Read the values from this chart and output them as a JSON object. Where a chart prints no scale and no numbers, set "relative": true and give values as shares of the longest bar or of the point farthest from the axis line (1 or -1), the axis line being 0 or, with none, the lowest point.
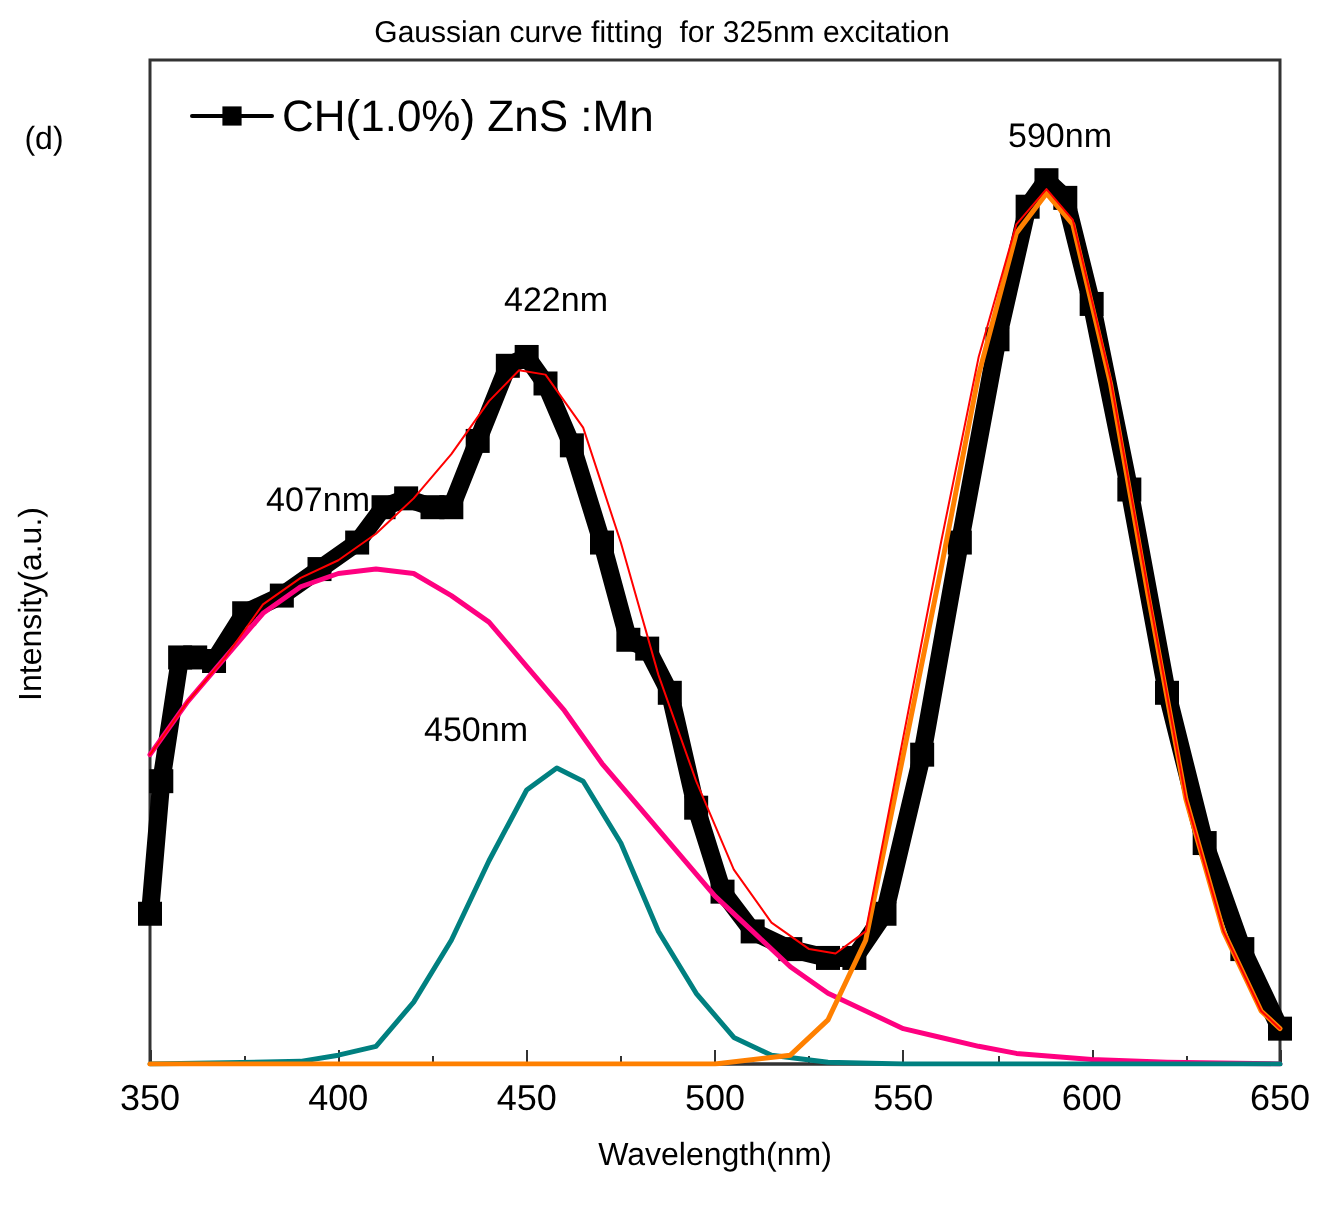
{
  "chart_data": {
    "type": "line",
    "title": "Gaussian curve fitting  for 325nm excitation",
    "xlabel": "Wavelength(nm)",
    "ylabel": "Intensity(a.u.)",
    "relative": true,
    "xlim": [
      350,
      650
    ],
    "xticks": [
      350,
      400,
      450,
      500,
      550,
      600,
      650
    ],
    "grid": false,
    "legend": "top left",
    "line_style": "solid",
    "annotations": [
      "(d)",
      "407nm",
      "422nm",
      "450nm",
      "590nm"
    ],
    "series": [
      {
        "name": "CH(1.0%) ZnS :Mn",
        "color": "#000000",
        "marker": "square",
        "x": [
          350,
          353,
          358,
          362,
          367,
          375,
          385,
          395,
          405,
          412,
          418,
          425,
          430,
          437,
          445,
          450,
          455,
          462,
          470,
          477,
          482,
          488,
          495,
          502,
          510,
          520,
          530,
          537,
          545,
          555,
          565,
          575,
          583,
          588,
          593,
          600,
          610,
          620,
          630,
          640,
          650
        ],
        "values": [
          0.17,
          0.32,
          0.46,
          0.46,
          0.456,
          0.51,
          0.53,
          0.56,
          0.59,
          0.63,
          0.64,
          0.63,
          0.63,
          0.705,
          0.79,
          0.8,
          0.77,
          0.7,
          0.59,
          0.48,
          0.47,
          0.42,
          0.29,
          0.195,
          0.15,
          0.13,
          0.12,
          0.12,
          0.17,
          0.35,
          0.59,
          0.82,
          0.97,
          1.0,
          0.98,
          0.86,
          0.65,
          0.42,
          0.25,
          0.13,
          0.04
        ]
      },
      {
        "color": "#ff0000",
        "marker": "none",
        "x": [
          350,
          360,
          370,
          380,
          390,
          400,
          410,
          420,
          430,
          440,
          448,
          455,
          465,
          475,
          485,
          495,
          505,
          515,
          525,
          532,
          540,
          550,
          560,
          570,
          580,
          588,
          595,
          605,
          615,
          625,
          635,
          645,
          650
        ],
        "values": [
          0.35,
          0.41,
          0.46,
          0.52,
          0.55,
          0.57,
          0.6,
          0.64,
          0.69,
          0.75,
          0.785,
          0.78,
          0.72,
          0.59,
          0.44,
          0.32,
          0.22,
          0.16,
          0.13,
          0.125,
          0.15,
          0.37,
          0.59,
          0.8,
          0.95,
          0.99,
          0.955,
          0.775,
          0.535,
          0.3,
          0.15,
          0.06,
          0.04
        ]
      },
      {
        "color": "#ff0080",
        "marker": "none",
        "x": [
          350,
          360,
          370,
          380,
          390,
          400,
          410,
          420,
          430,
          440,
          450,
          460,
          470,
          480,
          490,
          500,
          510,
          520,
          530,
          540,
          550,
          560,
          570,
          580,
          600,
          620,
          650
        ],
        "values": [
          0.35,
          0.41,
          0.46,
          0.51,
          0.54,
          0.555,
          0.56,
          0.555,
          0.53,
          0.5,
          0.45,
          0.4,
          0.34,
          0.29,
          0.24,
          0.19,
          0.15,
          0.11,
          0.08,
          0.06,
          0.04,
          0.03,
          0.02,
          0.012,
          0.005,
          0.002,
          0
        ]
      },
      {
        "color": "#008080",
        "marker": "none",
        "x": [
          350,
          390,
          400,
          410,
          420,
          430,
          440,
          450,
          458,
          465,
          475,
          485,
          495,
          505,
          515,
          530,
          550,
          650
        ],
        "values": [
          0,
          0.003,
          0.01,
          0.02,
          0.07,
          0.14,
          0.23,
          0.31,
          0.335,
          0.32,
          0.25,
          0.15,
          0.08,
          0.03,
          0.01,
          0.002,
          0,
          0
        ]
      },
      {
        "color": "#ff8000",
        "marker": "none",
        "x": [
          350,
          500,
          520,
          530,
          540,
          550,
          560,
          570,
          580,
          588,
          595,
          605,
          615,
          625,
          635,
          645,
          650
        ],
        "values": [
          0,
          0,
          0.01,
          0.05,
          0.14,
          0.35,
          0.56,
          0.78,
          0.94,
          0.985,
          0.95,
          0.77,
          0.53,
          0.3,
          0.15,
          0.06,
          0.04
        ]
      }
    ]
  }
}
